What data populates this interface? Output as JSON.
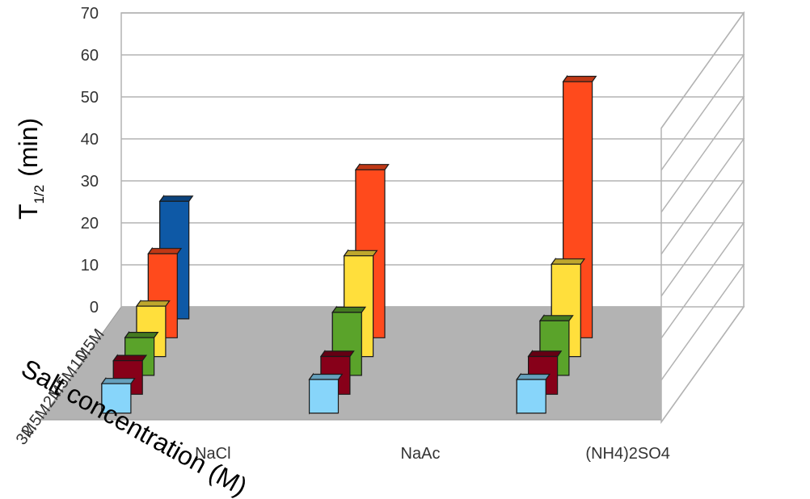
{
  "chart_data": {
    "type": "bar",
    "subtype": "3d-grouped-column",
    "title": "",
    "ylabel": "T",
    "ylabel_subscript": "1/2",
    "ylabel_unit": "(min)",
    "zlabel": "Salt concentration (M)",
    "ylim": [
      0,
      70
    ],
    "yticks": [
      "0",
      "10",
      "20",
      "30",
      "40",
      "50",
      "60",
      "70"
    ],
    "grid": true,
    "categories": [
      "NaCl",
      "NaAc",
      "(NH4)2SO4"
    ],
    "series": [
      {
        "name": "0.5M",
        "color": "#0e59a6",
        "values": [
          28,
          null,
          null
        ]
      },
      {
        "name": "1M",
        "color": "#ff4a1c",
        "values": [
          20,
          40,
          61
        ]
      },
      {
        "name": "1.5M",
        "color": "#ffdf3c",
        "values": [
          12,
          24,
          22
        ]
      },
      {
        "name": "2M",
        "color": "#5aa32a",
        "values": [
          9,
          15,
          13
        ]
      },
      {
        "name": "2.5M",
        "color": "#870019",
        "values": [
          8,
          9,
          9
        ]
      },
      {
        "name": "3M",
        "color": "#87d5fa",
        "values": [
          7,
          8,
          8
        ]
      }
    ]
  }
}
